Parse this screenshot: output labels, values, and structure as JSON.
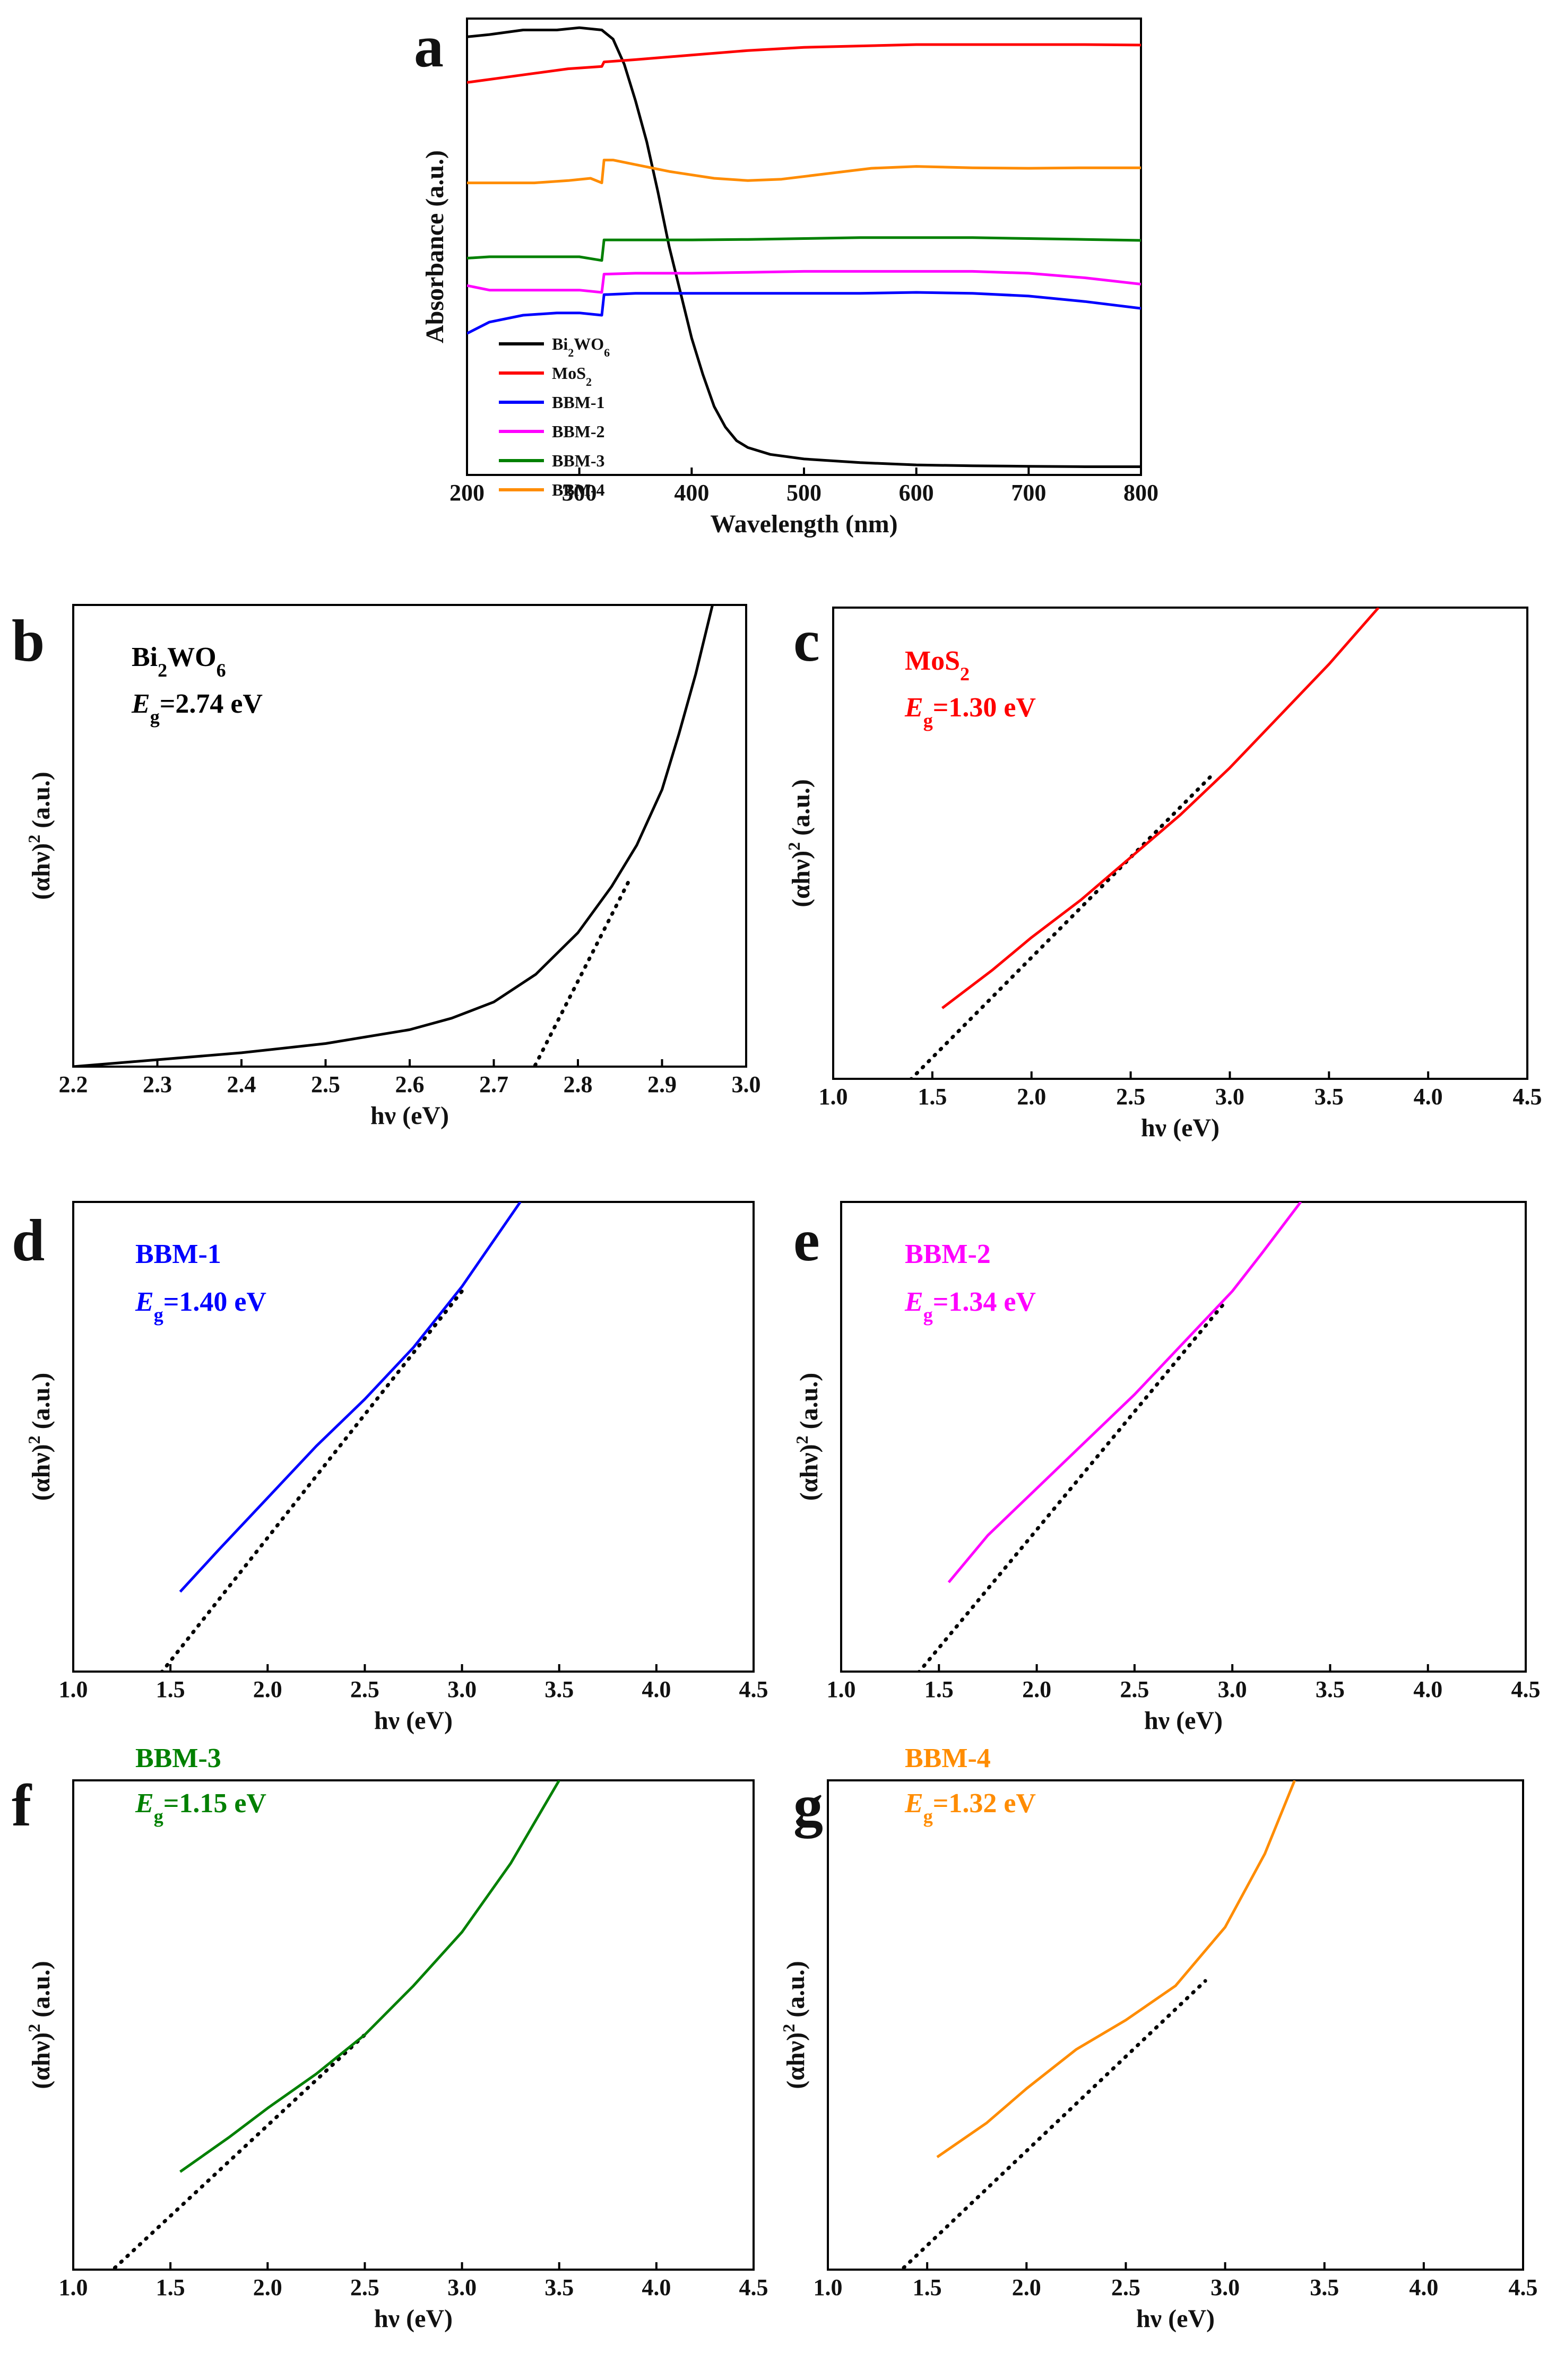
{
  "chart_data": [
    {
      "panel": "a",
      "type": "line",
      "title": "",
      "xlabel": "Wavelength (nm)",
      "ylabel": "Absorbance (a.u.)",
      "xlim": [
        200,
        800
      ],
      "ylim": [
        0,
        1
      ],
      "x_ticks": [
        200,
        300,
        400,
        500,
        600,
        700,
        800
      ],
      "grid": false,
      "legend_position": "bottom-left",
      "series": [
        {
          "name": "Bi2WO6",
          "name_main": "Bi",
          "name_sub1": "2",
          "name_mid": "WO",
          "name_sub2": "6",
          "color": "#000000",
          "x": [
            200,
            220,
            250,
            280,
            300,
            320,
            330,
            340,
            350,
            360,
            370,
            380,
            390,
            400,
            410,
            420,
            430,
            440,
            450,
            470,
            500,
            550,
            600,
            650,
            700,
            750,
            800
          ],
          "y": [
            0.96,
            0.965,
            0.975,
            0.975,
            0.98,
            0.975,
            0.955,
            0.9,
            0.82,
            0.73,
            0.62,
            0.5,
            0.4,
            0.3,
            0.22,
            0.15,
            0.105,
            0.075,
            0.06,
            0.045,
            0.035,
            0.027,
            0.022,
            0.02,
            0.019,
            0.018,
            0.018
          ]
        },
        {
          "name": "MoS2",
          "name_main": "MoS",
          "name_sub1": "2",
          "color": "#ff0000",
          "x": [
            200,
            230,
            260,
            290,
            320,
            322,
            350,
            400,
            450,
            500,
            550,
            600,
            650,
            700,
            750,
            800
          ],
          "y": [
            0.86,
            0.87,
            0.88,
            0.89,
            0.895,
            0.905,
            0.91,
            0.92,
            0.93,
            0.937,
            0.94,
            0.943,
            0.943,
            0.943,
            0.943,
            0.942
          ]
        },
        {
          "name": "BBM-1",
          "color": "#0000ff",
          "x": [
            200,
            220,
            250,
            280,
            300,
            320,
            322,
            350,
            400,
            450,
            500,
            550,
            600,
            650,
            700,
            750,
            800
          ],
          "y": [
            0.31,
            0.335,
            0.35,
            0.355,
            0.355,
            0.35,
            0.395,
            0.398,
            0.398,
            0.398,
            0.398,
            0.398,
            0.4,
            0.398,
            0.392,
            0.38,
            0.365
          ]
        },
        {
          "name": "BBM-2",
          "color": "#ff00ff",
          "x": [
            200,
            220,
            250,
            280,
            300,
            320,
            322,
            350,
            400,
            450,
            500,
            550,
            600,
            650,
            700,
            750,
            800
          ],
          "y": [
            0.415,
            0.405,
            0.405,
            0.405,
            0.405,
            0.4,
            0.44,
            0.442,
            0.442,
            0.444,
            0.446,
            0.446,
            0.446,
            0.446,
            0.442,
            0.432,
            0.418
          ]
        },
        {
          "name": "BBM-3",
          "color": "#008000",
          "x": [
            200,
            220,
            250,
            280,
            300,
            320,
            322,
            350,
            400,
            450,
            500,
            550,
            600,
            650,
            700,
            750,
            800
          ],
          "y": [
            0.475,
            0.478,
            0.478,
            0.478,
            0.478,
            0.47,
            0.515,
            0.515,
            0.515,
            0.516,
            0.518,
            0.52,
            0.52,
            0.52,
            0.518,
            0.516,
            0.514
          ]
        },
        {
          "name": "BBM-4",
          "color": "#ff8c00",
          "x": [
            200,
            230,
            260,
            290,
            310,
            320,
            322,
            330,
            350,
            380,
            420,
            450,
            480,
            520,
            560,
            600,
            650,
            700,
            750,
            800
          ],
          "y": [
            0.64,
            0.64,
            0.64,
            0.645,
            0.65,
            0.64,
            0.69,
            0.69,
            0.68,
            0.665,
            0.65,
            0.645,
            0.648,
            0.66,
            0.672,
            0.676,
            0.673,
            0.672,
            0.673,
            0.673
          ]
        }
      ]
    },
    {
      "panel": "b",
      "type": "line",
      "sample": "Bi2WO6",
      "label_main": "Bi",
      "label_sub1": "2",
      "label_mid": "WO",
      "label_sub2": "6",
      "eg_symbol": "E",
      "eg_sub": "g",
      "eg_value": "=2.74 eV",
      "color": "#000000",
      "xlabel": "hν (eV)",
      "ylabel": "(αhν)",
      "ylabel_sup": "2",
      "ylabel_unit": " (a.u.)",
      "xlim": [
        2.2,
        3.0
      ],
      "ylim": [
        0,
        1
      ],
      "x_ticks": [
        2.2,
        2.3,
        2.4,
        2.5,
        2.6,
        2.7,
        2.8,
        2.9,
        3.0
      ],
      "tick_decimals": 1,
      "x": [
        2.2,
        2.3,
        2.4,
        2.5,
        2.6,
        2.65,
        2.7,
        2.75,
        2.8,
        2.84,
        2.87,
        2.9,
        2.92,
        2.94,
        2.96
      ],
      "y": [
        0.0,
        0.015,
        0.03,
        0.05,
        0.08,
        0.105,
        0.14,
        0.2,
        0.29,
        0.39,
        0.48,
        0.6,
        0.72,
        0.85,
        1.0
      ],
      "fit_line": {
        "x": [
          2.74,
          2.86
        ],
        "y": [
          -0.03,
          0.4
        ]
      }
    },
    {
      "panel": "c",
      "type": "line",
      "sample": "MoS2",
      "label_main": "MoS",
      "label_sub1": "2",
      "eg_symbol": "E",
      "eg_sub": "g",
      "eg_value": "=1.30 eV",
      "color": "#ff0000",
      "xlabel": "hν (eV)",
      "ylabel": "(αhν)",
      "ylabel_sup": "2",
      "ylabel_unit": " (a.u.)",
      "xlim": [
        1.0,
        4.5
      ],
      "ylim": [
        0,
        1
      ],
      "x_ticks": [
        1.0,
        1.5,
        2.0,
        2.5,
        3.0,
        3.5,
        4.0,
        4.5
      ],
      "tick_decimals": 1,
      "x": [
        1.55,
        1.8,
        2.0,
        2.25,
        2.5,
        2.75,
        3.0,
        3.25,
        3.5,
        3.75
      ],
      "y": [
        0.15,
        0.23,
        0.3,
        0.38,
        0.47,
        0.56,
        0.66,
        0.77,
        0.88,
        1.0
      ],
      "fit_line": {
        "x": [
          1.3,
          2.9
        ],
        "y": [
          -0.04,
          0.64
        ]
      }
    },
    {
      "panel": "d",
      "type": "line",
      "sample": "BBM-1",
      "label_main": "BBM-1",
      "eg_symbol": "E",
      "eg_sub": "g",
      "eg_value": "=1.40 eV",
      "color": "#0000ff",
      "xlabel": "hν (eV)",
      "ylabel": "(αhν)",
      "ylabel_sup": "2",
      "ylabel_unit": " (a.u.)",
      "xlim": [
        1.0,
        4.5
      ],
      "ylim": [
        0,
        1
      ],
      "x_ticks": [
        1.0,
        1.5,
        2.0,
        2.5,
        3.0,
        3.5,
        4.0,
        4.5
      ],
      "tick_decimals": 1,
      "x": [
        1.55,
        1.75,
        2.0,
        2.25,
        2.5,
        2.75,
        3.0,
        3.15,
        3.3
      ],
      "y": [
        0.17,
        0.26,
        0.37,
        0.48,
        0.58,
        0.69,
        0.82,
        0.91,
        1.0
      ],
      "fit_line": {
        "x": [
          1.4,
          3.0
        ],
        "y": [
          -0.03,
          0.81
        ]
      }
    },
    {
      "panel": "e",
      "type": "line",
      "sample": "BBM-2",
      "label_main": "BBM-2",
      "eg_symbol": "E",
      "eg_sub": "g",
      "eg_value": "=1.34 eV",
      "color": "#ff00ff",
      "xlabel": "hν (eV)",
      "ylabel": "(αhν)",
      "ylabel_sup": "2",
      "ylabel_unit": " (a.u.)",
      "xlim": [
        1.0,
        4.5
      ],
      "ylim": [
        0,
        1
      ],
      "x_ticks": [
        1.0,
        1.5,
        2.0,
        2.5,
        3.0,
        3.5,
        4.0,
        4.5
      ],
      "tick_decimals": 1,
      "x": [
        1.55,
        1.75,
        2.0,
        2.25,
        2.5,
        2.75,
        3.0,
        3.15,
        3.35
      ],
      "y": [
        0.19,
        0.29,
        0.39,
        0.49,
        0.59,
        0.7,
        0.81,
        0.89,
        1.0
      ],
      "fit_line": {
        "x": [
          1.34,
          2.95
        ],
        "y": [
          -0.03,
          0.78
        ]
      }
    },
    {
      "panel": "f",
      "type": "line",
      "sample": "BBM-3",
      "label_main": "BBM-3",
      "eg_symbol": "E",
      "eg_sub": "g",
      "eg_value": "=1.15 eV",
      "color": "#008000",
      "xlabel": "hν (eV)",
      "ylabel": "(αhν)",
      "ylabel_sup": "2",
      "ylabel_unit": " (a.u.)",
      "xlim": [
        1.0,
        4.5
      ],
      "ylim": [
        0,
        1
      ],
      "x_ticks": [
        1.0,
        1.5,
        2.0,
        2.5,
        3.0,
        3.5,
        4.0,
        4.5
      ],
      "tick_decimals": 1,
      "x": [
        1.55,
        1.8,
        2.0,
        2.25,
        2.5,
        2.75,
        3.0,
        3.25,
        3.5
      ],
      "y": [
        0.2,
        0.27,
        0.33,
        0.4,
        0.48,
        0.58,
        0.69,
        0.83,
        1.0
      ],
      "fit_line": {
        "x": [
          1.15,
          2.5
        ],
        "y": [
          -0.02,
          0.48
        ]
      }
    },
    {
      "panel": "g",
      "type": "line",
      "sample": "BBM-4",
      "label_main": "BBM-4",
      "eg_symbol": "E",
      "eg_sub": "g",
      "eg_value": "=1.32 eV",
      "color": "#ff8c00",
      "xlabel": "hν (eV)",
      "ylabel": "(αhν)",
      "ylabel_sup": "2",
      "ylabel_unit": " (a.u.)",
      "xlim": [
        1.0,
        4.5
      ],
      "ylim": [
        0,
        1
      ],
      "x_ticks": [
        1.0,
        1.5,
        2.0,
        2.5,
        3.0,
        3.5,
        4.0,
        4.5
      ],
      "tick_decimals": 1,
      "x": [
        1.55,
        1.8,
        2.0,
        2.25,
        2.5,
        2.75,
        3.0,
        3.2,
        3.35
      ],
      "y": [
        0.23,
        0.3,
        0.37,
        0.45,
        0.51,
        0.58,
        0.7,
        0.85,
        1.0
      ],
      "fit_line": {
        "x": [
          1.32,
          2.9
        ],
        "y": [
          -0.02,
          0.59
        ]
      }
    }
  ]
}
